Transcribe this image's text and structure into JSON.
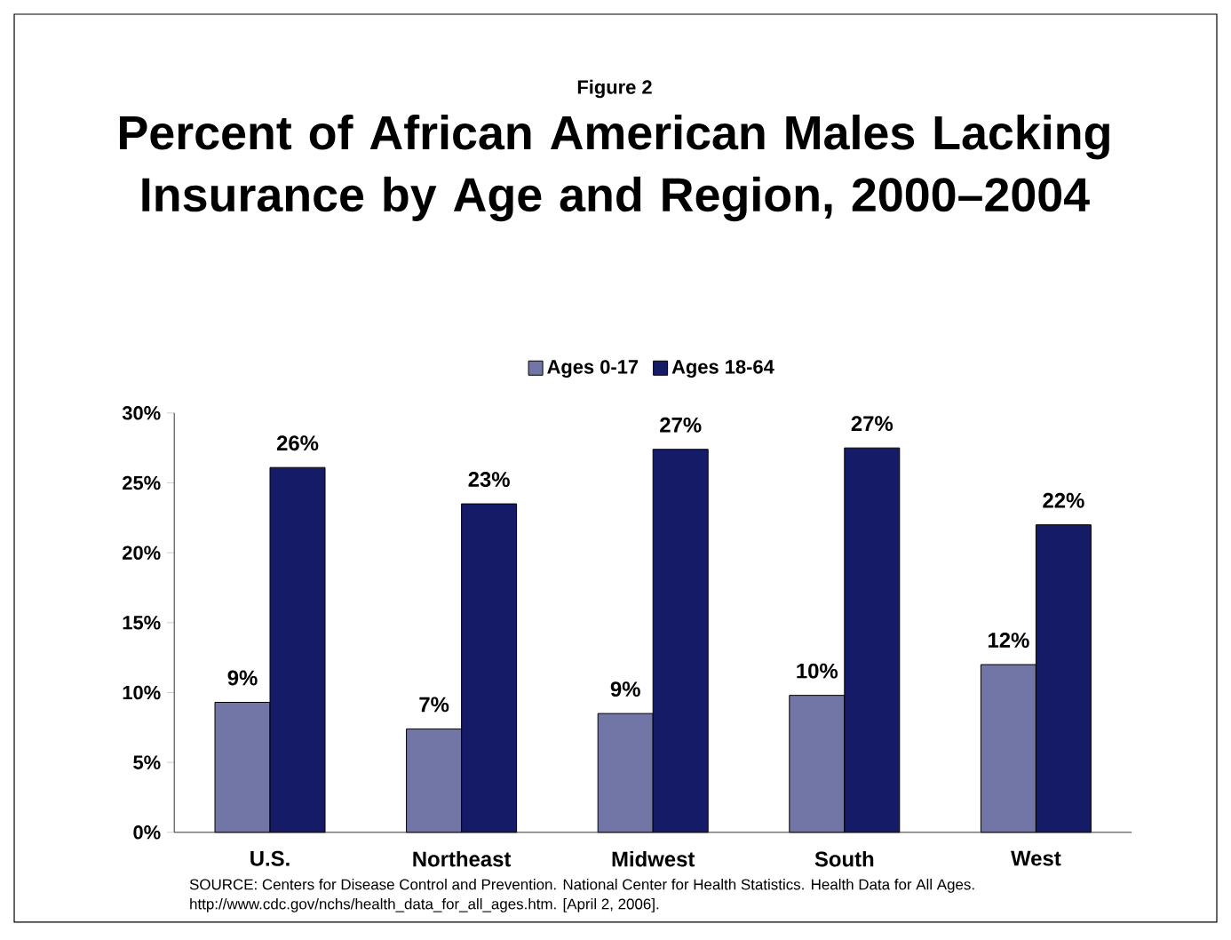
{
  "chart_data": {
    "type": "bar",
    "subtitle": "Figure 2",
    "title": "Percent of African American Males Lacking Insurance by Age and Region, 2000–2004",
    "categories": [
      "U.S.",
      "Northeast",
      "Midwest",
      "South",
      "West"
    ],
    "series": [
      {
        "name": "Ages 0-17",
        "color": "#7276a6",
        "values": [
          9.3,
          7.4,
          8.5,
          9.8,
          12.0
        ],
        "value_labels": [
          "9%",
          "7%",
          "9%",
          "10%",
          "12%"
        ]
      },
      {
        "name": "Ages 18-64",
        "color": "#151b66",
        "values": [
          26.1,
          23.5,
          27.4,
          27.5,
          22.0
        ],
        "value_labels": [
          "26%",
          "23%",
          "27%",
          "27%",
          "22%"
        ]
      }
    ],
    "ylim": [
      0,
      30
    ],
    "yticks": [
      {
        "value": 0,
        "label": "0%"
      },
      {
        "value": 5,
        "label": "5%"
      },
      {
        "value": 10,
        "label": "10%"
      },
      {
        "value": 15,
        "label": "15%"
      },
      {
        "value": 20,
        "label": "20%"
      },
      {
        "value": 25,
        "label": "25%"
      },
      {
        "value": 30,
        "label": "30%"
      }
    ],
    "legend": "top",
    "annotations": [
      "SOURCE:  Centers for Disease Control and Prevention. National Center for Health Statistics. Health Data for All Ages.",
      "http://www.cdc.gov/nchs/health_data_for_all_ages.htm. [April 2, 2006]."
    ]
  }
}
